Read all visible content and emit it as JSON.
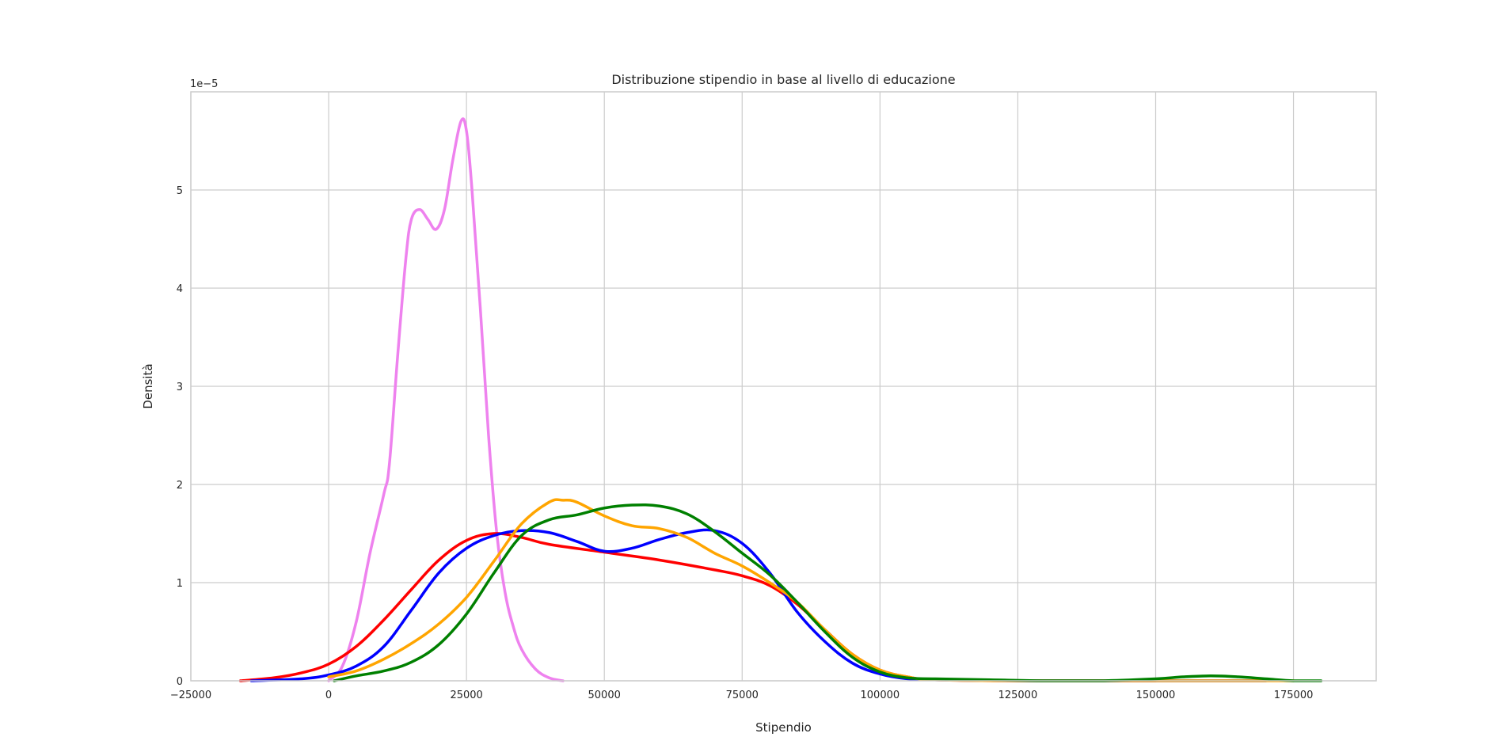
{
  "chart_data": {
    "type": "line",
    "title": "Distribuzione stipendio in base al livello di educazione",
    "xlabel": "Stipendio",
    "ylabel": "Densità",
    "y_offset_label": "1e−5",
    "xlim": [
      -25000,
      190000
    ],
    "ylim": [
      0,
      6.0
    ],
    "x_ticks": [
      -25000,
      0,
      25000,
      50000,
      75000,
      100000,
      125000,
      150000,
      175000
    ],
    "y_ticks": [
      0,
      1,
      2,
      3,
      4,
      5
    ],
    "grid": true,
    "series": [
      {
        "color": "#ee82ee",
        "x": [
          0,
          2500,
          5000,
          7500,
          10000,
          11000,
          12500,
          14000,
          15000,
          16500,
          18000,
          19500,
          21000,
          22500,
          24000,
          25000,
          26000,
          27500,
          29000,
          30500,
          32000,
          33500,
          35000,
          37500,
          40000,
          42500
        ],
        "y": [
          0.0,
          0.15,
          0.6,
          1.3,
          1.9,
          2.2,
          3.3,
          4.3,
          4.7,
          4.8,
          4.7,
          4.6,
          4.8,
          5.3,
          5.7,
          5.6,
          5.0,
          3.8,
          2.5,
          1.5,
          0.9,
          0.55,
          0.32,
          0.12,
          0.03,
          0.0
        ]
      },
      {
        "color": "#ff0000",
        "x": [
          -16000,
          -10000,
          -5000,
          0,
          5000,
          10000,
          15000,
          20000,
          25000,
          30000,
          35000,
          40000,
          50000,
          60000,
          70000,
          75000,
          80000,
          85000,
          90000,
          95000,
          100000,
          105000,
          110000,
          125000,
          150000
        ],
        "y": [
          0.0,
          0.03,
          0.08,
          0.17,
          0.35,
          0.62,
          0.93,
          1.23,
          1.43,
          1.5,
          1.46,
          1.39,
          1.31,
          1.23,
          1.13,
          1.07,
          0.97,
          0.78,
          0.52,
          0.27,
          0.11,
          0.04,
          0.01,
          0.0,
          0.0
        ]
      },
      {
        "color": "#0000ff",
        "x": [
          -14000,
          -5000,
          0,
          5000,
          10000,
          15000,
          20000,
          25000,
          30000,
          35000,
          40000,
          45000,
          50000,
          55000,
          60000,
          65000,
          70000,
          75000,
          80000,
          85000,
          90000,
          95000,
          100000,
          105000,
          110000,
          125000,
          150000,
          160000,
          170000
        ],
        "y": [
          0.0,
          0.02,
          0.06,
          0.15,
          0.35,
          0.72,
          1.1,
          1.35,
          1.48,
          1.53,
          1.51,
          1.42,
          1.32,
          1.35,
          1.44,
          1.51,
          1.53,
          1.4,
          1.1,
          0.7,
          0.4,
          0.18,
          0.07,
          0.02,
          0.01,
          0.0,
          0.0,
          0.0,
          0.0
        ]
      },
      {
        "color": "#ffa500",
        "x": [
          0,
          5000,
          10000,
          15000,
          20000,
          25000,
          30000,
          35000,
          40000,
          42500,
          45000,
          50000,
          55000,
          60000,
          65000,
          70000,
          75000,
          80000,
          85000,
          90000,
          95000,
          100000,
          105000,
          110000,
          125000,
          150000,
          170000,
          175000
        ],
        "y": [
          0.04,
          0.1,
          0.22,
          0.38,
          0.58,
          0.85,
          1.22,
          1.6,
          1.82,
          1.84,
          1.82,
          1.68,
          1.58,
          1.55,
          1.46,
          1.3,
          1.17,
          1.0,
          0.8,
          0.52,
          0.27,
          0.11,
          0.04,
          0.01,
          0.0,
          0.0,
          0.0,
          0.0
        ]
      },
      {
        "color": "#008000",
        "x": [
          1000,
          5000,
          10000,
          15000,
          20000,
          25000,
          30000,
          35000,
          40000,
          45000,
          50000,
          55000,
          60000,
          65000,
          70000,
          75000,
          80000,
          85000,
          90000,
          95000,
          100000,
          105000,
          110000,
          120000,
          130000,
          140000,
          150000,
          155000,
          160000,
          165000,
          170000,
          175000,
          180000
        ],
        "y": [
          0.0,
          0.05,
          0.1,
          0.19,
          0.37,
          0.68,
          1.1,
          1.48,
          1.64,
          1.69,
          1.76,
          1.79,
          1.78,
          1.7,
          1.52,
          1.3,
          1.08,
          0.8,
          0.5,
          0.24,
          0.09,
          0.03,
          0.02,
          0.01,
          0.0,
          0.0,
          0.02,
          0.04,
          0.05,
          0.04,
          0.02,
          0.0,
          0.0
        ]
      }
    ]
  }
}
